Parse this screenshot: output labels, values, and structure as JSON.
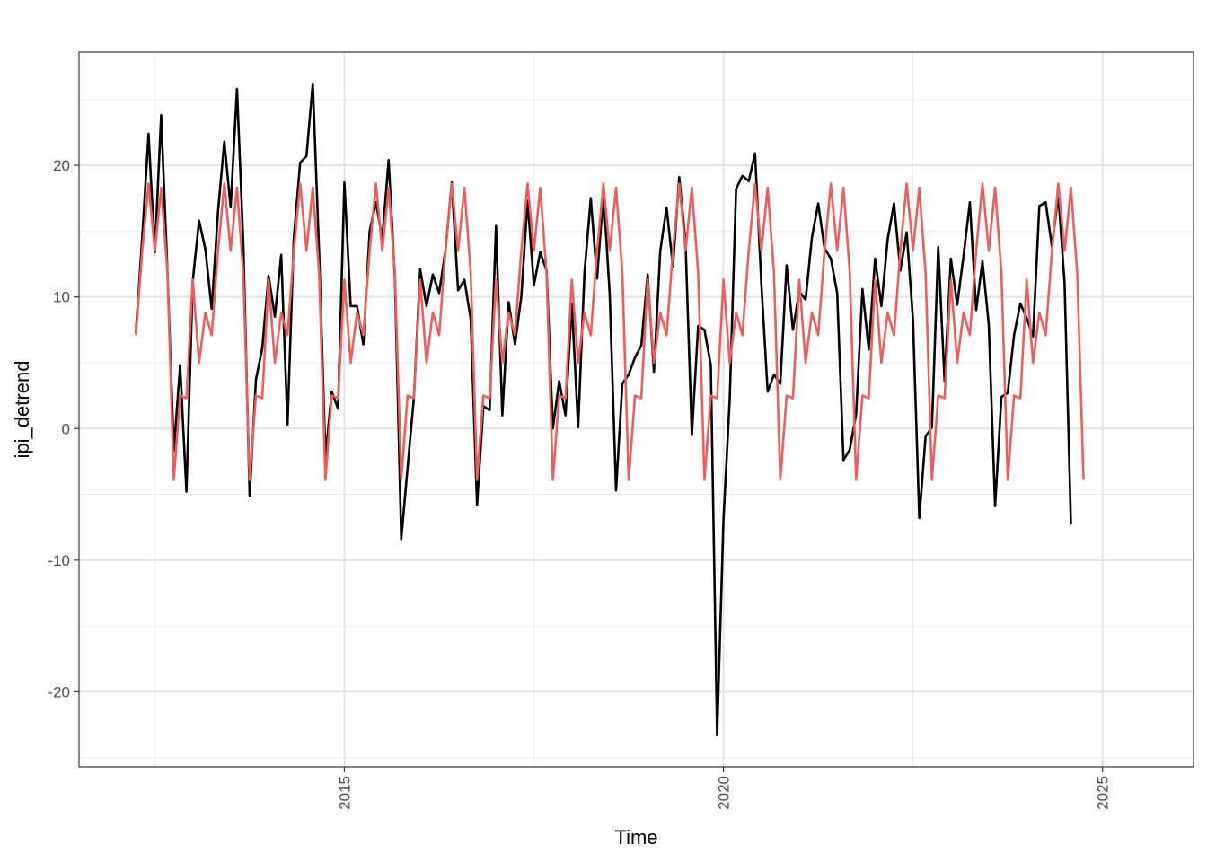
{
  "chart_data": {
    "type": "line",
    "title": "",
    "xlabel": "Time",
    "ylabel": "ipi_detrend",
    "xlim": [
      2011.5,
      2026.2
    ],
    "ylim": [
      -25.7,
      28.6
    ],
    "x_ticks": [
      2015,
      2020,
      2025
    ],
    "x_tick_labels": [
      "2015",
      "2020",
      "2025"
    ],
    "y_ticks": [
      -20,
      -10,
      0,
      10,
      20
    ],
    "y_tick_labels": [
      "-20",
      "-10",
      "0",
      "10",
      "20"
    ],
    "grid": true,
    "legend": "none",
    "x_start": 2012.25,
    "x_step": 0.08333,
    "series": [
      {
        "color": "#000000",
        "values": [
          7.3,
          14.5,
          22.4,
          13.4,
          23.8,
          11.8,
          -1.7,
          4.8,
          -4.8,
          11.2,
          15.8,
          13.6,
          9.1,
          16.5,
          21.8,
          16.8,
          25.8,
          14.1,
          -5.1,
          3.7,
          6.1,
          11.6,
          8.5,
          13.2,
          0.3,
          14.5,
          20.2,
          20.7,
          26.2,
          13.4,
          -2.2,
          2.8,
          1.5,
          18.7,
          9.3,
          9.3,
          6.4,
          15.0,
          17.2,
          14.4,
          20.4,
          11.4,
          -8.4,
          -3.0,
          2.3,
          12.1,
          9.3,
          11.7,
          10.3,
          13.5,
          18.7,
          10.5,
          11.3,
          8.3,
          -5.8,
          1.7,
          1.4,
          15.4,
          1.0,
          9.6,
          6.4,
          10.0,
          17.3,
          10.9,
          13.4,
          12.0,
          0.0,
          3.6,
          1.0,
          9.5,
          0.1,
          11.8,
          17.5,
          11.4,
          17.9,
          10.2,
          -4.7,
          3.4,
          4.1,
          5.4,
          6.3,
          11.7,
          4.3,
          13.5,
          16.8,
          12.3,
          19.1,
          14.1,
          -0.5,
          7.8,
          7.5,
          4.8,
          -23.3,
          -7.0,
          2.3,
          18.2,
          19.2,
          18.8,
          20.9,
          11.0,
          2.8,
          4.1,
          3.4,
          12.4,
          7.5,
          10.4,
          9.8,
          14.5,
          17.1,
          13.7,
          12.9,
          10.3,
          -2.4,
          -1.6,
          1.1,
          10.6,
          6.0,
          12.9,
          9.3,
          14.4,
          17.1,
          12.0,
          14.9,
          8.3,
          -6.8,
          -0.6,
          0.1,
          13.8,
          3.6,
          12.9,
          9.4,
          13.1,
          17.2,
          9.0,
          12.7,
          7.9,
          -5.9,
          2.4,
          2.7,
          7.1,
          9.5,
          8.4,
          7.0,
          16.9,
          17.2,
          13.8,
          17.8,
          11.0,
          -7.3
        ]
      },
      {
        "color": "#ee5c5c",
        "values": [
          7.1,
          13.5,
          18.6,
          13.5,
          18.3,
          11.8,
          -3.9,
          2.5,
          2.3,
          11.3,
          5.0,
          8.8,
          7.1,
          13.5,
          18.6,
          13.5,
          18.3,
          11.8,
          -3.9,
          2.5,
          2.3,
          11.3,
          5.0,
          8.8,
          7.1,
          13.5,
          18.6,
          13.5,
          18.3,
          11.8,
          -3.9,
          2.5,
          2.3,
          11.3,
          5.0,
          8.8,
          7.1,
          13.5,
          18.6,
          13.5,
          18.3,
          11.8,
          -3.9,
          2.5,
          2.3,
          11.3,
          5.0,
          8.8,
          7.1,
          13.5,
          18.6,
          13.5,
          18.3,
          11.8,
          -3.9,
          2.5,
          2.3,
          11.3,
          5.0,
          8.8,
          7.1,
          13.5,
          18.6,
          13.5,
          18.3,
          11.8,
          -3.9,
          2.5,
          2.3,
          11.3,
          5.0,
          8.8,
          7.1,
          13.5,
          18.6,
          13.5,
          18.3,
          11.8,
          -3.9,
          2.5,
          2.3,
          11.3,
          5.0,
          8.8,
          7.1,
          13.5,
          18.6,
          13.5,
          18.3,
          11.8,
          -3.9,
          2.5,
          2.3,
          11.3,
          5.0,
          8.8,
          7.1,
          13.5,
          18.6,
          13.5,
          18.3,
          11.8,
          -3.9,
          2.5,
          2.3,
          11.3,
          5.0,
          8.8,
          7.1,
          13.5,
          18.6,
          13.5,
          18.3,
          11.8,
          -3.9,
          2.5,
          2.3,
          11.3,
          5.0,
          8.8,
          7.1,
          13.5,
          18.6,
          13.5,
          18.3,
          11.8,
          -3.9,
          2.5,
          2.3,
          11.3,
          5.0,
          8.8,
          7.1,
          13.5,
          18.6,
          13.5,
          18.3,
          11.8,
          -3.9,
          2.5,
          2.3,
          11.3,
          5.0,
          8.8,
          7.1,
          13.5,
          18.6,
          13.5,
          18.3,
          11.8,
          -3.9
        ]
      }
    ]
  }
}
